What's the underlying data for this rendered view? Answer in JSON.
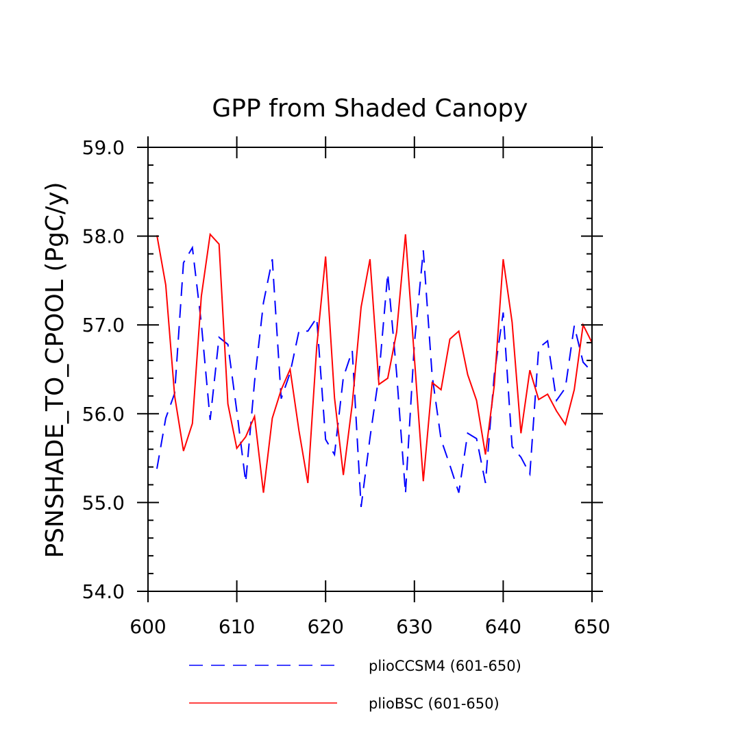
{
  "chart_data": {
    "type": "line",
    "title": "GPP from Shaded Canopy",
    "xlabel": "",
    "ylabel": "PSNSHADE_TO_CPOOL  (PgC/y)",
    "xlim": [
      600,
      650
    ],
    "ylim": [
      54.0,
      59.0
    ],
    "x_ticks": [
      600,
      610,
      620,
      630,
      640,
      650
    ],
    "x_tick_labels": [
      "600",
      "610",
      "620",
      "630",
      "640",
      "650"
    ],
    "y_ticks": [
      54.0,
      55.0,
      56.0,
      57.0,
      58.0,
      59.0
    ],
    "y_tick_labels": [
      "54.0",
      "55.0",
      "56.0",
      "57.0",
      "58.0",
      "59.0"
    ],
    "grid": false,
    "legend_position": "bottom",
    "x": [
      601,
      602,
      603,
      604,
      605,
      606,
      607,
      608,
      609,
      610,
      611,
      612,
      613,
      614,
      615,
      616,
      617,
      618,
      619,
      620,
      621,
      622,
      623,
      624,
      625,
      626,
      627,
      628,
      629,
      630,
      631,
      632,
      633,
      634,
      635,
      636,
      637,
      638,
      639,
      640,
      641,
      642,
      643,
      644,
      645,
      646,
      647,
      648,
      649,
      650
    ],
    "series": [
      {
        "name": "plioCCSM4 (601-650)",
        "color": "#0000ff",
        "style": "dashed",
        "values": [
          55.38,
          55.95,
          56.23,
          57.7,
          57.87,
          57.02,
          55.93,
          56.86,
          56.78,
          56.03,
          55.23,
          56.36,
          57.25,
          57.74,
          56.17,
          56.46,
          56.93,
          56.93,
          57.08,
          55.71,
          55.54,
          56.41,
          56.71,
          54.95,
          55.73,
          56.43,
          57.58,
          56.45,
          55.1,
          56.79,
          57.84,
          56.43,
          55.71,
          55.42,
          55.11,
          55.78,
          55.72,
          55.22,
          56.44,
          57.14,
          55.63,
          55.51,
          55.32,
          56.74,
          56.82,
          56.15,
          56.29,
          56.99,
          56.58,
          56.47
        ]
      },
      {
        "name": "plioBSC (601-650)",
        "color": "#ff0000",
        "style": "solid",
        "values": [
          58.01,
          57.45,
          56.2,
          55.58,
          55.89,
          57.32,
          58.02,
          57.91,
          56.11,
          55.61,
          55.74,
          55.97,
          55.11,
          55.95,
          56.27,
          56.5,
          55.81,
          55.22,
          56.75,
          57.77,
          56.18,
          55.31,
          56.11,
          57.2,
          57.74,
          56.33,
          56.4,
          56.92,
          58.02,
          56.63,
          55.24,
          56.35,
          56.27,
          56.84,
          56.93,
          56.44,
          56.15,
          55.54,
          56.32,
          57.74,
          57.03,
          55.78,
          56.49,
          56.16,
          56.22,
          56.03,
          55.88,
          56.27,
          57.0,
          56.8
        ]
      }
    ]
  }
}
